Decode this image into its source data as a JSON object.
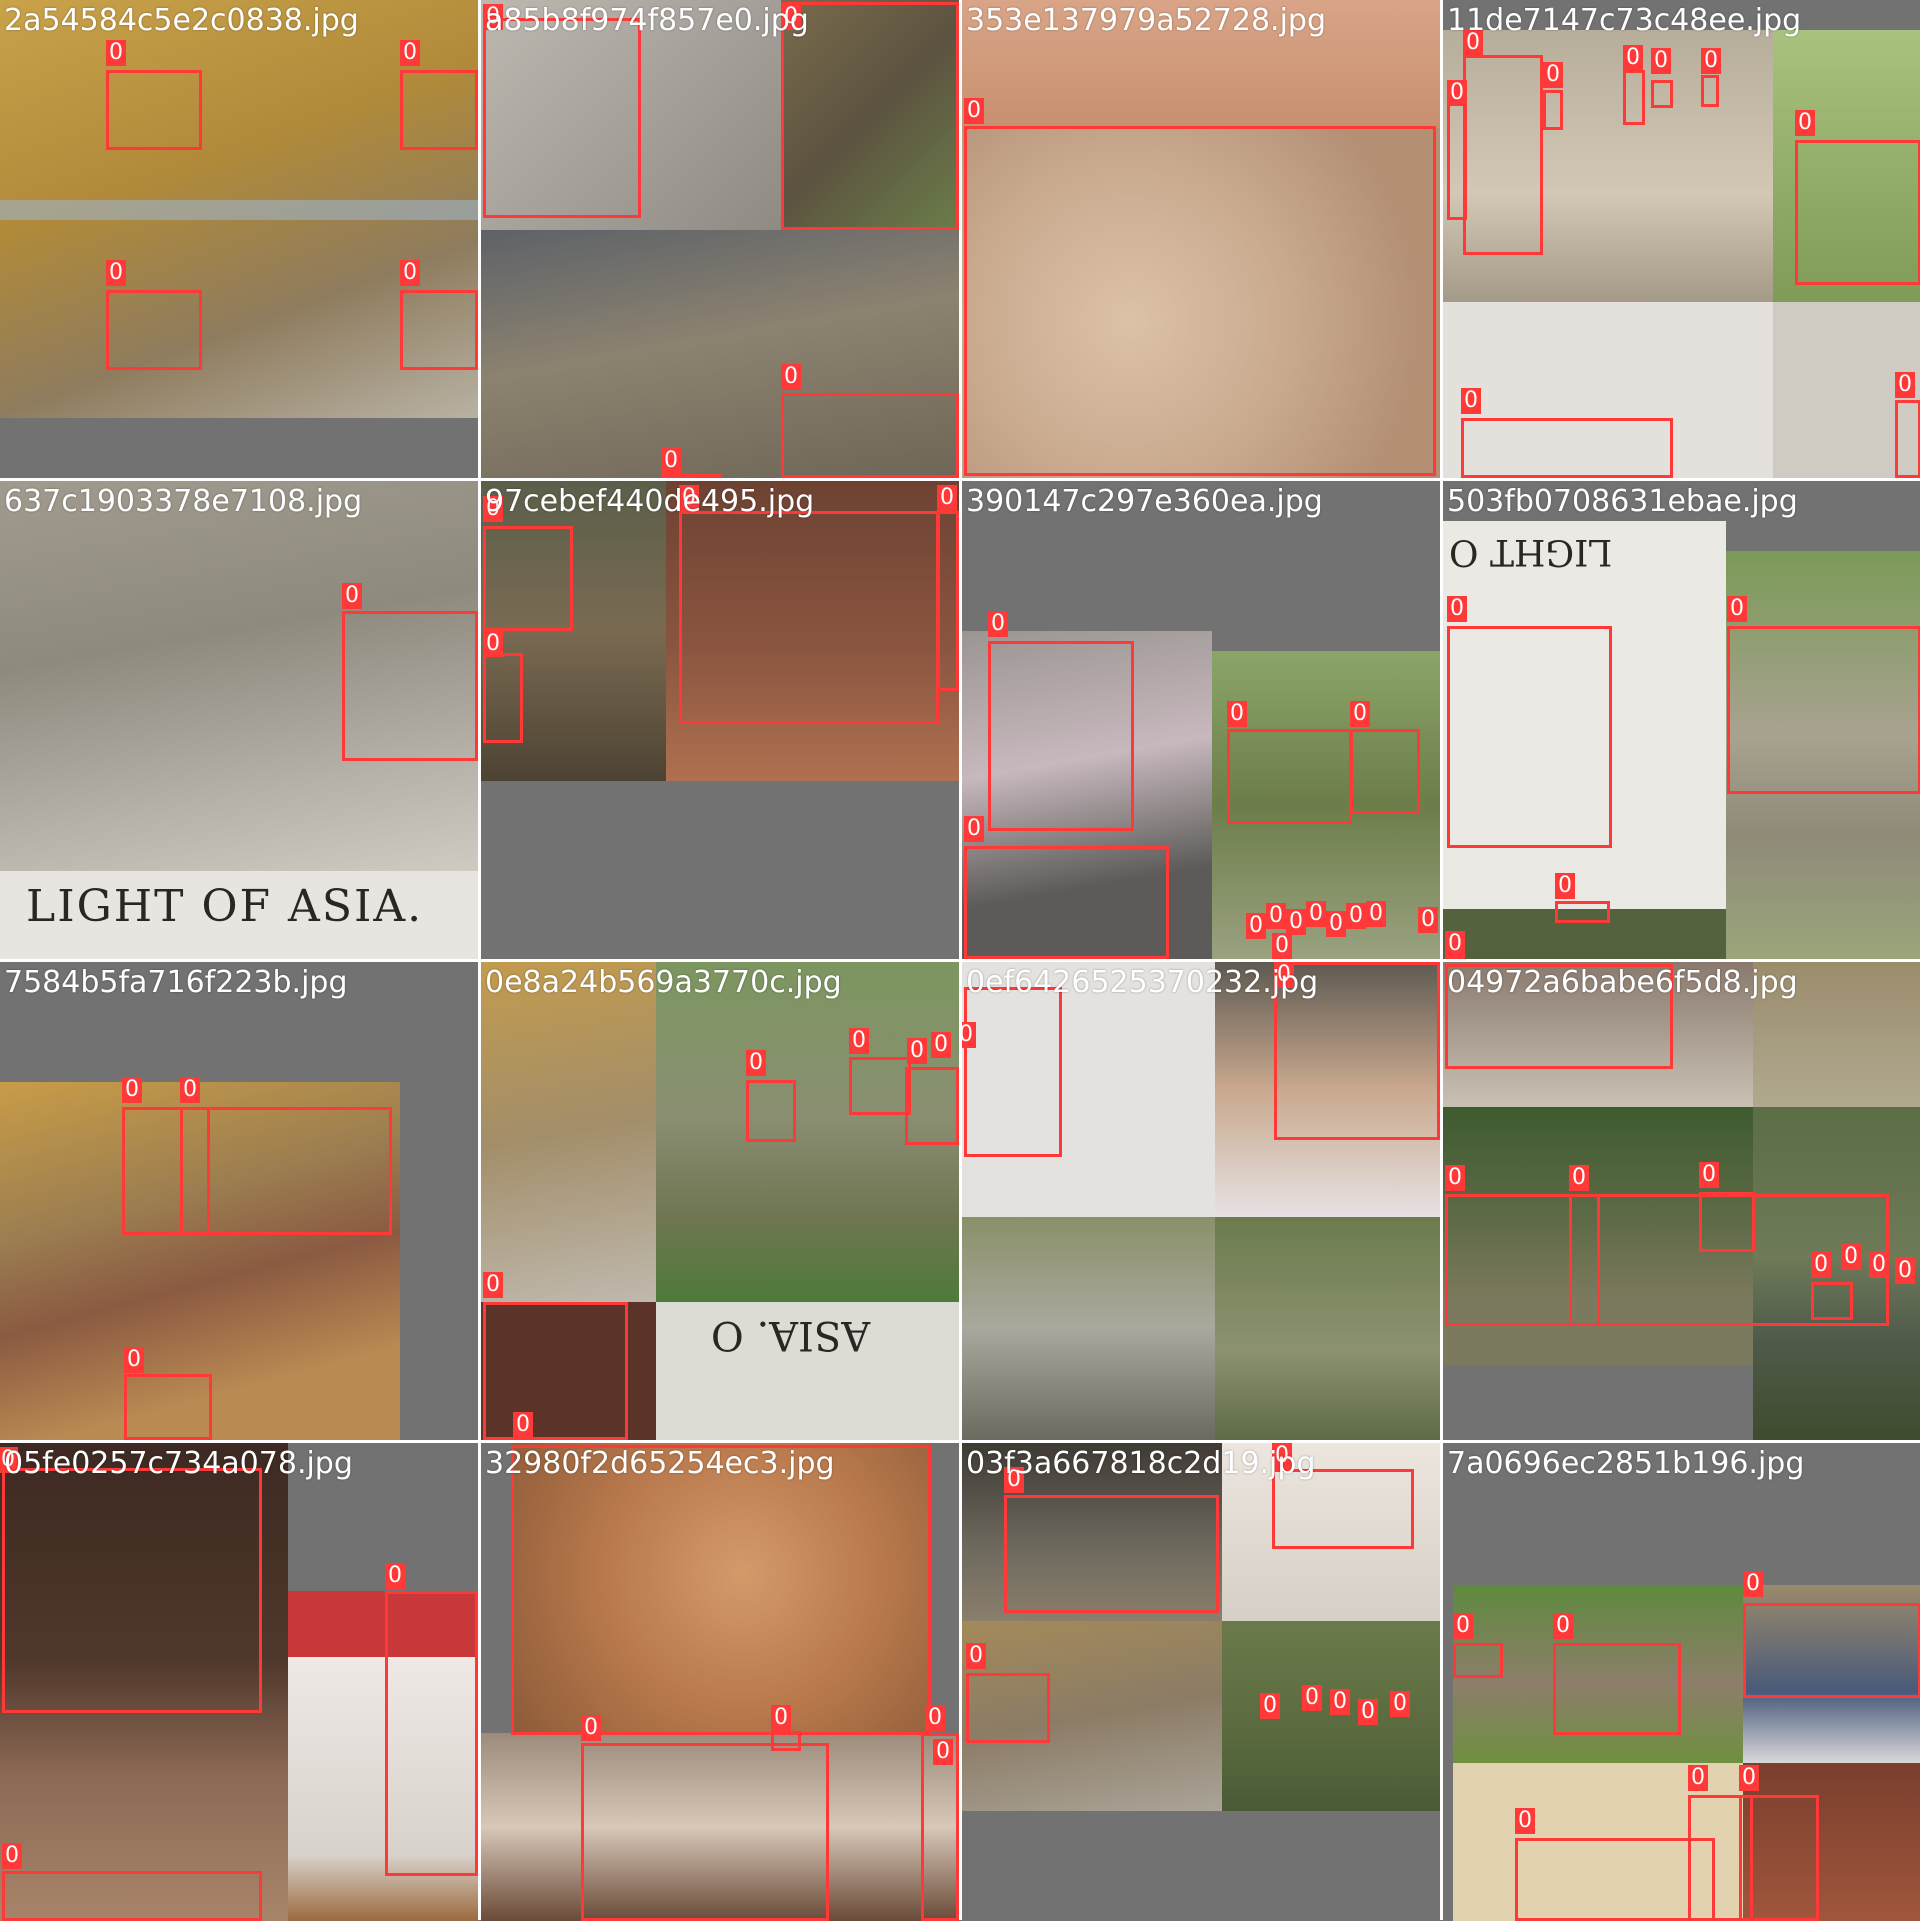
{
  "label_color": "#ff3838",
  "background_color": "#727272",
  "tiles": [
    {
      "filename": "2a54584c5e2c0838.jpg",
      "labels": [
        "0",
        "0",
        "0",
        "0"
      ]
    },
    {
      "filename": "a85b8f974f857e0.jpg",
      "labels": [
        "0",
        "0",
        "0",
        "0"
      ]
    },
    {
      "filename": "353e137979a52728.jpg",
      "labels": [
        "0"
      ]
    },
    {
      "filename": "11de7147c73c48ee.jpg",
      "labels": [
        "0",
        "0",
        "0",
        "0",
        "0",
        "0",
        "0",
        "0",
        "0"
      ]
    },
    {
      "filename": "637c1903378e7108.jpg",
      "labels": [
        "0"
      ],
      "caption": "LIGHT OF ASIA."
    },
    {
      "filename": "97cebef440de495.jpg",
      "labels": [
        "0",
        "0",
        "0",
        "0"
      ]
    },
    {
      "filename": "390147c297e360ea.jpg",
      "labels": [
        "0",
        "0",
        "0",
        "0",
        "0",
        "0",
        "0",
        "0",
        "0",
        "0",
        "0",
        "0",
        "0"
      ]
    },
    {
      "filename": "503fb0708631ebae.jpg",
      "labels": [
        "0",
        "0",
        "0",
        "0"
      ],
      "caption": "LIGHT O"
    },
    {
      "filename": "7584b5fa716f223b.jpg",
      "labels": [
        "0",
        "0",
        "0"
      ]
    },
    {
      "filename": "0e8a24b569a3770c.jpg",
      "labels": [
        "0",
        "0",
        "0",
        "0",
        "0",
        "0"
      ],
      "caption": "ASIA. O"
    },
    {
      "filename": "0ef6426525370232.jpg",
      "labels": [
        "0",
        "0"
      ]
    },
    {
      "filename": "04972a6babe6f5d8.jpg",
      "labels": [
        "0",
        "0",
        "0",
        "0",
        "0",
        "0",
        "0"
      ]
    },
    {
      "filename": "05fe0257c734a078.jpg",
      "labels": [
        "0",
        "0",
        "0"
      ]
    },
    {
      "filename": "32980f2d65254ec3.jpg",
      "labels": [
        "0",
        "0",
        "0",
        "0"
      ]
    },
    {
      "filename": "03f3a667818c2d19.jpg",
      "labels": [
        "0",
        "0",
        "0",
        "0",
        "0",
        "0",
        "0",
        "0"
      ]
    },
    {
      "filename": "7a0696ec2851b196.jpg",
      "labels": [
        "0",
        "0",
        "0",
        "0",
        "0",
        "0"
      ]
    }
  ]
}
